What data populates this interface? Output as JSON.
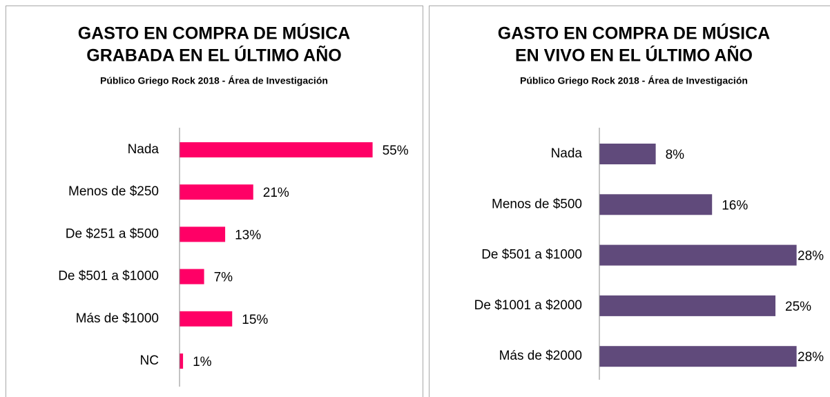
{
  "chart_data": [
    {
      "type": "bar",
      "orientation": "horizontal",
      "title": [
        "GASTO EN COMPRA DE MÚSICA",
        "GRABADA EN EL ÚLTIMO AÑO"
      ],
      "subtitle": "Público Griego Rock 2018 - Área de Investigación",
      "categories": [
        "Nada",
        "Menos de $250",
        "De $251 a $500",
        "De $501 a $1000",
        "Más de $1000",
        "NC"
      ],
      "values": [
        55,
        21,
        13,
        7,
        15,
        1
      ],
      "value_labels": [
        "55%",
        "21%",
        "13%",
        "7%",
        "15%",
        "1%"
      ],
      "color": "#ff0066",
      "xlim": [
        0,
        60
      ]
    },
    {
      "type": "bar",
      "orientation": "horizontal",
      "title": [
        "GASTO EN COMPRA DE MÚSICA",
        "EN VIVO EN EL ÚLTIMO AÑO"
      ],
      "subtitle": "Público Griego Rock 2018 - Área de Investigación",
      "categories": [
        "Nada",
        "Menos de $500",
        "De $501 a $1000",
        "De $1001 a $2000",
        "Más de $2000"
      ],
      "values": [
        8,
        16,
        28,
        25,
        28
      ],
      "value_labels": [
        "8%",
        "16%",
        "28%",
        "25%",
        "28%"
      ],
      "color": "#604a7b",
      "xlim": [
        0,
        30
      ]
    }
  ]
}
